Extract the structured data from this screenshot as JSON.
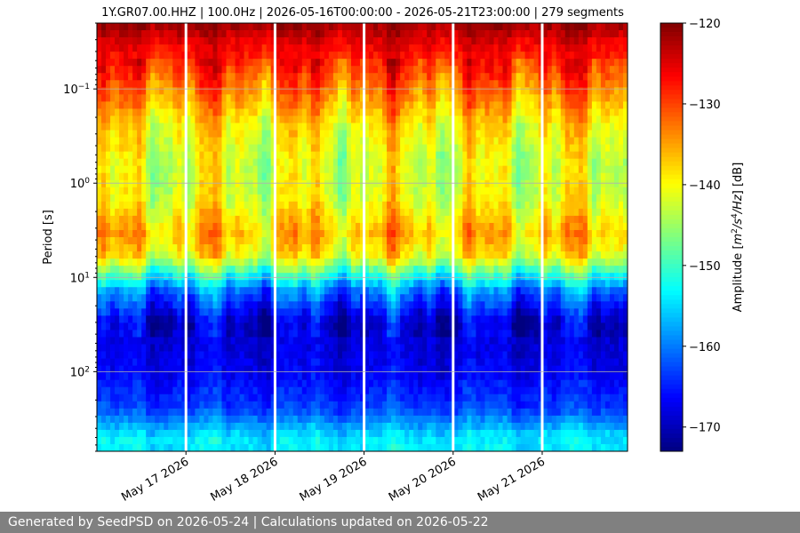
{
  "chart_data": {
    "type": "heatmap",
    "title": "1Y.GR07.00.HHZ | 100.0Hz | 2026-05-16T00:00:00 - 2026-05-21T23:00:00 | 279 segments",
    "ylabel": "Period [s]",
    "ylabel_scale": "log",
    "ylim": [
      0.02,
      700
    ],
    "y_inverted": true,
    "xlim": [
      "2026-05-16T00:00:00",
      "2026-05-21T23:00:00"
    ],
    "x_ticks": [
      {
        "date": "2026-05-17",
        "label": "May 17 2026"
      },
      {
        "date": "2026-05-18",
        "label": "May 18 2026"
      },
      {
        "date": "2026-05-19",
        "label": "May 19 2026"
      },
      {
        "date": "2026-05-20",
        "label": "May 20 2026"
      },
      {
        "date": "2026-05-21",
        "label": "May 21 2026"
      }
    ],
    "y_ticks": [
      {
        "base": "10",
        "exp": "−1",
        "value": 0.1
      },
      {
        "base": "10",
        "exp": "0",
        "value": 1
      },
      {
        "base": "10",
        "exp": "1",
        "value": 10
      },
      {
        "base": "10",
        "exp": "2",
        "value": 100
      }
    ],
    "grid": true,
    "colormap": "jet",
    "colorbar": {
      "label_prefix": "Amplitude [",
      "label_unit": "m",
      "label_sup1": "2",
      "label_mid": "/s",
      "label_sup2": "4",
      "label_hz": "/Hz",
      "label_suffix": "] [dB]",
      "range": [
        -173,
        -120
      ],
      "ticks": [
        "−120",
        "−130",
        "−140",
        "−150",
        "−160",
        "−170"
      ],
      "tick_values": [
        -120,
        -130,
        -140,
        -150,
        -160,
        -170
      ]
    },
    "data_gaps": [
      "2026-05-17",
      "2026-05-18",
      "2026-05-19",
      "2026-05-20",
      "2026-05-21"
    ],
    "amplitude_profile": [
      {
        "period": 0.02,
        "db": -121
      },
      {
        "period": 0.03,
        "db": -125
      },
      {
        "period": 0.06,
        "db": -129
      },
      {
        "period": 0.12,
        "db": -134
      },
      {
        "period": 0.25,
        "db": -139
      },
      {
        "period": 0.6,
        "db": -142
      },
      {
        "period": 1.5,
        "db": -141
      },
      {
        "period": 3.5,
        "db": -136
      },
      {
        "period": 6,
        "db": -140
      },
      {
        "period": 9,
        "db": -150
      },
      {
        "period": 14,
        "db": -160
      },
      {
        "period": 30,
        "db": -169
      },
      {
        "period": 100,
        "db": -167
      },
      {
        "period": 250,
        "db": -163
      },
      {
        "period": 500,
        "db": -154
      }
    ]
  },
  "footer": {
    "text": "Generated by SeedPSD on 2026-05-24 | Calculations updated on 2026-05-22"
  }
}
